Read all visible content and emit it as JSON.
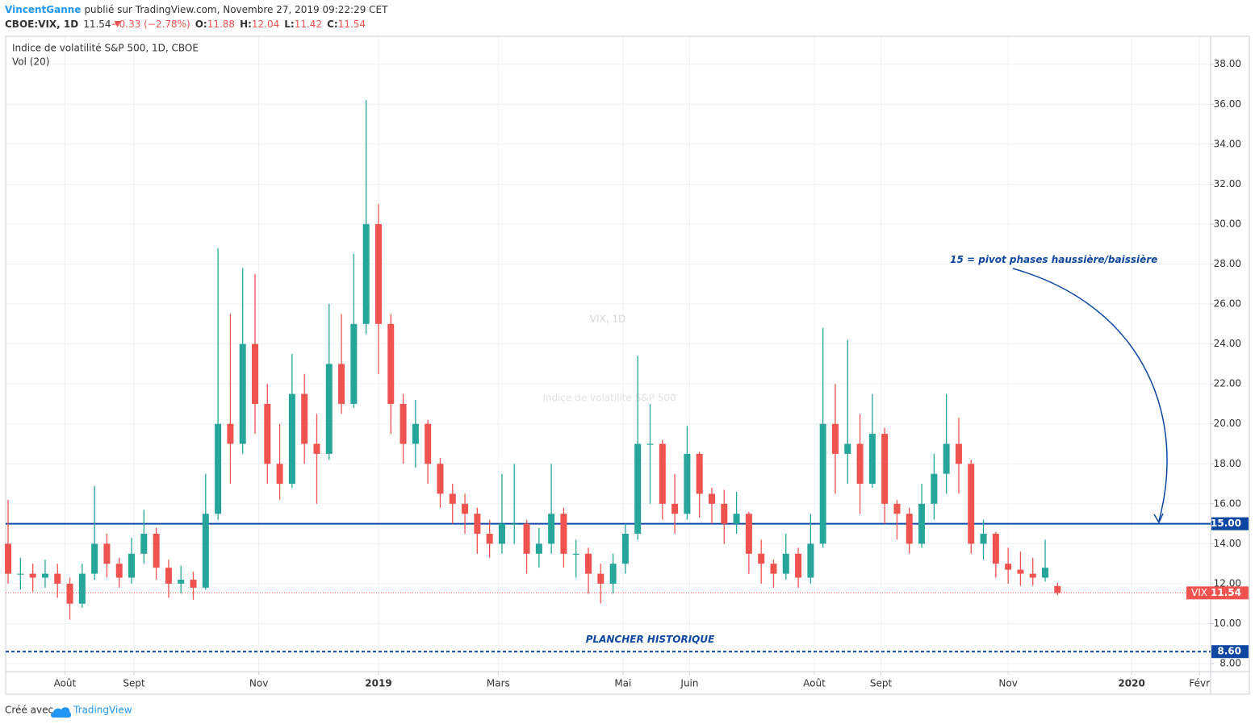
{
  "header": {
    "author": "VincentGanne",
    "published": "publié sur TradingView.com, Novembre 27, 2019 09:22:29 CET",
    "symbol": "CBOE:VIX, 1D",
    "last": 11.54,
    "change": "−0.33 (−2.78%)",
    "ohlc": [
      {
        "label": "O:",
        "value": 11.88
      },
      {
        "label": "H:",
        "value": 12.04
      },
      {
        "label": "L:",
        "value": 11.42
      },
      {
        "label": "C:",
        "value": 11.54
      }
    ]
  },
  "chart_data": {
    "type": "candlestick",
    "title": "Indice de volatilité S&P 500, 1D, CBOE",
    "subtitle": "Vol (20)",
    "watermark": "VIX, 1D",
    "watermark_sub": "Indice de volatilité S&P 500",
    "series": [
      {
        "name": "VIX",
        "up_color": "#26a69a",
        "down_color": "#ef5350",
        "open": [
          14.0,
          12.5,
          12.5,
          12.3,
          12.5,
          12.0,
          11.0,
          12.5,
          14.0,
          13.0,
          12.3,
          13.5,
          14.5,
          12.8,
          12.0,
          12.2,
          11.8,
          15.5,
          20.0,
          19.0,
          24.0,
          21.0,
          18.0,
          17.0,
          21.5,
          19.0,
          18.5,
          23.0,
          21.0,
          25.0,
          30.0,
          25.0,
          21.0,
          19.0,
          20.0,
          18.0,
          16.5,
          16.0,
          15.5,
          14.5,
          14.0,
          15.0,
          15.0,
          13.5,
          14.0,
          15.5,
          13.5,
          13.5,
          12.5,
          12.0,
          13.0,
          14.5,
          19.0,
          19.0,
          16.0,
          15.5,
          18.5,
          16.5,
          16.0,
          15.0,
          15.5,
          13.5,
          13.0,
          12.5,
          13.5,
          12.3,
          14.0,
          20.0,
          18.5,
          19.0,
          17.0,
          19.5,
          16.0,
          15.5,
          14.0,
          16.0,
          17.5,
          19.0,
          18.0,
          14.0,
          14.5,
          13.0,
          12.7,
          12.5,
          12.3,
          11.88
        ],
        "high": [
          16.2,
          13.3,
          13.0,
          13.2,
          13.0,
          12.3,
          13.0,
          16.9,
          14.5,
          13.3,
          14.3,
          15.7,
          14.8,
          13.2,
          12.9,
          12.6,
          17.5,
          28.8,
          25.5,
          27.8,
          27.5,
          22.0,
          20.0,
          23.5,
          22.5,
          20.5,
          26.0,
          25.5,
          28.5,
          36.2,
          31.0,
          25.5,
          21.5,
          21.2,
          20.2,
          18.3,
          17.0,
          16.5,
          15.8,
          15.2,
          17.5,
          18.0,
          15.2,
          14.8,
          18.0,
          15.8,
          14.2,
          13.8,
          13.0,
          13.5,
          15.0,
          23.4,
          21.0,
          19.2,
          17.5,
          19.9,
          18.6,
          16.8,
          16.7,
          16.6,
          15.6,
          14.2,
          13.2,
          14.5,
          13.8,
          15.5,
          24.8,
          22.0,
          24.2,
          20.5,
          21.5,
          19.8,
          16.2,
          15.8,
          17.0,
          18.5,
          21.5,
          20.3,
          18.2,
          15.2,
          14.6,
          13.8,
          13.6,
          13.3,
          14.2,
          12.04
        ],
        "low": [
          12.0,
          11.7,
          11.6,
          11.8,
          11.3,
          10.2,
          10.8,
          12.2,
          12.3,
          11.8,
          12.0,
          13.0,
          12.2,
          11.3,
          11.5,
          11.2,
          11.7,
          15.2,
          17.0,
          18.5,
          19.5,
          17.0,
          16.2,
          16.8,
          18.0,
          16.0,
          18.2,
          20.5,
          20.8,
          24.5,
          22.5,
          19.5,
          18.0,
          17.8,
          17.0,
          15.8,
          15.0,
          14.5,
          13.5,
          13.3,
          13.5,
          14.0,
          12.5,
          12.8,
          13.5,
          12.8,
          12.3,
          11.5,
          11.0,
          11.5,
          12.5,
          14.2,
          16.0,
          15.2,
          14.5,
          15.2,
          15.3,
          15.0,
          14.0,
          14.5,
          12.5,
          12.0,
          11.8,
          12.2,
          11.8,
          12.0,
          13.8,
          16.5,
          17.0,
          15.5,
          16.8,
          15.0,
          14.2,
          13.5,
          13.8,
          15.2,
          16.5,
          16.5,
          13.5,
          13.2,
          12.3,
          12.0,
          11.9,
          11.9,
          12.1,
          11.42
        ],
        "close": [
          12.5,
          12.5,
          12.3,
          12.5,
          12.0,
          11.0,
          12.5,
          14.0,
          13.0,
          12.3,
          13.5,
          14.5,
          12.8,
          12.0,
          12.2,
          11.8,
          15.5,
          20.0,
          19.0,
          24.0,
          21.0,
          18.0,
          17.0,
          21.5,
          19.0,
          18.5,
          23.0,
          21.0,
          25.0,
          30.0,
          25.0,
          21.0,
          19.0,
          20.0,
          18.0,
          16.5,
          16.0,
          15.5,
          14.5,
          14.0,
          15.0,
          15.0,
          13.5,
          14.0,
          15.5,
          13.5,
          13.5,
          12.5,
          12.0,
          13.0,
          14.5,
          19.0,
          19.0,
          16.0,
          15.5,
          18.5,
          16.5,
          16.0,
          15.0,
          15.5,
          13.5,
          13.0,
          12.5,
          13.5,
          12.3,
          14.0,
          20.0,
          18.5,
          19.0,
          17.0,
          19.5,
          16.0,
          15.5,
          14.0,
          16.0,
          17.5,
          19.0,
          18.0,
          14.0,
          14.5,
          13.0,
          12.7,
          12.5,
          12.3,
          12.8,
          11.54
        ]
      }
    ],
    "xlim": [
      -0.2,
      97.4
    ],
    "xticks": [
      {
        "value": 4.6,
        "label": "Août"
      },
      {
        "value": 10.2,
        "label": "Sept"
      },
      {
        "value": 20.3,
        "label": "Nov"
      },
      {
        "value": 30.0,
        "label": "2019"
      },
      {
        "value": 39.7,
        "label": "Mars"
      },
      {
        "value": 49.8,
        "label": "Mai"
      },
      {
        "value": 55.2,
        "label": "Juin"
      },
      {
        "value": 65.3,
        "label": "Août"
      },
      {
        "value": 70.7,
        "label": "Sept"
      },
      {
        "value": 81.0,
        "label": "Nov"
      },
      {
        "value": 91.0,
        "label": "2020"
      },
      {
        "value": 96.5,
        "label": "Févr"
      }
    ],
    "ylim": [
      7.6,
      39.4
    ],
    "yticks": [
      {
        "value": 8,
        "label": "8.00"
      },
      {
        "value": 10,
        "label": "10.00"
      },
      {
        "value": 12,
        "label": "12.00"
      },
      {
        "value": 14,
        "label": "14.00"
      },
      {
        "value": 16,
        "label": "16.00"
      },
      {
        "value": 18,
        "label": "18.00"
      },
      {
        "value": 20,
        "label": "20.00"
      },
      {
        "value": 22,
        "label": "22.00"
      },
      {
        "value": 24,
        "label": "24.00"
      },
      {
        "value": 26,
        "label": "26.00"
      },
      {
        "value": 28,
        "label": "28.00"
      },
      {
        "value": 30,
        "label": "30.00"
      },
      {
        "value": 32,
        "label": "32.00"
      },
      {
        "value": 34,
        "label": "34.00"
      },
      {
        "value": 36,
        "label": "36.00"
      },
      {
        "value": 38,
        "label": "38.00"
      }
    ],
    "grid": true,
    "hlines": [
      {
        "value": 15,
        "label": "15.00",
        "color": "#0d47a1",
        "style": "solid"
      },
      {
        "value": 8.6,
        "label": "8.60",
        "color": "#0d47a1",
        "style": "dashed"
      }
    ],
    "last_price": {
      "name": "VIX",
      "value": 11.54,
      "label": "11.54",
      "color": "#ef5350"
    },
    "annotations": [
      {
        "text": "15 = pivot phases haussière/baissière",
        "x": 84.7,
        "y": 28.2
      },
      {
        "text": "PLANCHER HISTORIQUE",
        "x": 52.0,
        "y": 9.2
      }
    ]
  },
  "footer": {
    "prefix": "Créé avec",
    "brand": "TradingView"
  }
}
